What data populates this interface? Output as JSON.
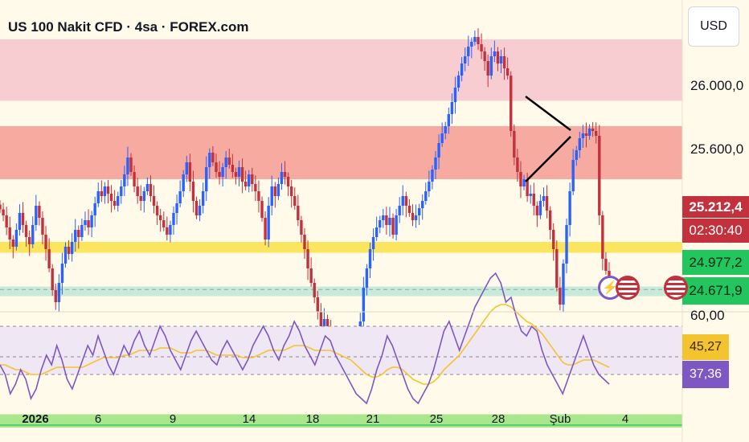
{
  "header": {
    "title": "US 100 Nakit CFD · 4sa · FOREX.com",
    "currency_label": "USD"
  },
  "colors": {
    "bull": "#2962ff",
    "bear": "#c2313c",
    "rsi": "#7e57c2",
    "rsi_ma": "#f4c430",
    "accent_red": "#c2313c",
    "accent_green": "#22c55e",
    "accent_purple": "#7e57c2"
  },
  "price_axis": {
    "ticks": [
      "26.000,0",
      "25.600,0"
    ]
  },
  "price_badges": {
    "last_price": "25.212,4",
    "countdown": "02:30:40",
    "level_upper": "24.977,2",
    "level_lower": "24.671,9"
  },
  "rsi_axis": {
    "top_label": "60,00",
    "ma_value": "45,27",
    "rsi_value": "37,36"
  },
  "x_axis": {
    "labels": [
      "2026",
      "6",
      "9",
      "14",
      "18",
      "21",
      "25",
      "28",
      "Şub",
      "4"
    ]
  },
  "events": [
    {
      "icon": "lightning-icon"
    },
    {
      "icon": "us-flag-icon"
    },
    {
      "icon": "us-flag-icon"
    }
  ],
  "chart_data": {
    "type": "candlestick",
    "y_range": [
      24580,
      26330
    ],
    "zones": [
      {
        "from": 25995,
        "to": 26250,
        "color": "#f8cdd2"
      },
      {
        "from": 25670,
        "to": 25890,
        "color": "#f6aaa0"
      },
      {
        "from": 25365,
        "to": 25410,
        "color": "#fbe45e"
      },
      {
        "from": 25185,
        "to": 25225,
        "color": "#c8eadb"
      },
      {
        "from": 24640,
        "to": 24695,
        "color": "#a9e68c"
      }
    ],
    "dashed_levels": [
      24977.2,
      25212.4
    ],
    "close": [
      25545,
      25520,
      25470,
      25420,
      25390,
      25460,
      25530,
      25480,
      25430,
      25400,
      25480,
      25560,
      25510,
      25440,
      25380,
      25300,
      25210,
      25160,
      25240,
      25320,
      25390,
      25360,
      25410,
      25460,
      25430,
      25480,
      25500,
      25470,
      25520,
      25570,
      25620,
      25600,
      25640,
      25610,
      25580,
      25560,
      25600,
      25640,
      25690,
      25760,
      25700,
      25640,
      25600,
      25580,
      25620,
      25650,
      25600,
      25560,
      25520,
      25500,
      25470,
      25440,
      25480,
      25530,
      25570,
      25620,
      25690,
      25740,
      25660,
      25580,
      25520,
      25560,
      25620,
      25720,
      25780,
      25740,
      25700,
      25680,
      25720,
      25760,
      25730,
      25700,
      25680,
      25720,
      25660,
      25640,
      25690,
      25650,
      25620,
      25580,
      25510,
      25420,
      25560,
      25640,
      25600,
      25650,
      25700,
      25680,
      25640,
      25600,
      25560,
      25500,
      25440,
      25380,
      25300,
      25240,
      25180,
      25120,
      25060,
      25090,
      25060,
      25020,
      24980,
      24960,
      24990,
      25020,
      24960,
      24950,
      24930,
      25010,
      25080,
      25220,
      25300,
      25380,
      25430,
      25470,
      25500,
      25520,
      25480,
      25510,
      25440,
      25520,
      25560,
      25600,
      25560,
      25530,
      25500,
      25520,
      25550,
      25580,
      25620,
      25660,
      25710,
      25760,
      25820,
      25860,
      25890,
      25940,
      25990,
      26050,
      26100,
      26150,
      26180,
      26220,
      26240,
      26260,
      26230,
      26200,
      26160,
      26100,
      26180,
      26200,
      26150,
      26180,
      26130,
      26100,
      25870,
      25760,
      25700,
      25640,
      25670,
      25600,
      25610,
      25560,
      25520,
      25580,
      25600,
      25540,
      25460,
      25380,
      25220,
      25150,
      25320,
      25480,
      25620,
      25750,
      25790,
      25840,
      25860,
      25850,
      25880,
      25870,
      25850,
      25520,
      25340,
      25290,
      25212
    ],
    "rsi": [
      44,
      40,
      32,
      36,
      42,
      38,
      30,
      34,
      42,
      48,
      44,
      52,
      46,
      38,
      34,
      40,
      46,
      52,
      48,
      56,
      50,
      44,
      40,
      46,
      52,
      48,
      54,
      58,
      52,
      48,
      54,
      60,
      56,
      50,
      46,
      42,
      48,
      54,
      58,
      54,
      50,
      46,
      44,
      50,
      54,
      50,
      46,
      42,
      46,
      52,
      56,
      60,
      56,
      50,
      46,
      52,
      56,
      62,
      58,
      52,
      48,
      44,
      50,
      56,
      54,
      48,
      44,
      40,
      36,
      32,
      30,
      28,
      34,
      42,
      48,
      56,
      52,
      46,
      40,
      34,
      30,
      28,
      32,
      36,
      42,
      50,
      58,
      62,
      56,
      50,
      56,
      62,
      68,
      72,
      76,
      80,
      82,
      78,
      70,
      72,
      64,
      58,
      56,
      60,
      58,
      50,
      44,
      40,
      36,
      32,
      38,
      44,
      50,
      56,
      50,
      44,
      40,
      38,
      36
    ],
    "rsi_ma": [
      44,
      44,
      43,
      42,
      42,
      41,
      40,
      40,
      40,
      41,
      42,
      43,
      43,
      43,
      43,
      43,
      43,
      44,
      45,
      46,
      47,
      47,
      47,
      47,
      48,
      48,
      49,
      50,
      50,
      50,
      50,
      51,
      51,
      51,
      50,
      49,
      49,
      49,
      50,
      50,
      50,
      49,
      48,
      48,
      48,
      48,
      48,
      47,
      47,
      47,
      48,
      49,
      50,
      50,
      50,
      50,
      51,
      52,
      52,
      52,
      51,
      50,
      50,
      50,
      50,
      49,
      48,
      47,
      46,
      44,
      42,
      40,
      39,
      39,
      40,
      42,
      43,
      43,
      42,
      40,
      38,
      37,
      36,
      36,
      37,
      39,
      42,
      44,
      46,
      48,
      51,
      54,
      57,
      60,
      63,
      66,
      68,
      69,
      69,
      68,
      66,
      64,
      62,
      61,
      59,
      57,
      54,
      51,
      48,
      45,
      44,
      44,
      45,
      46,
      46,
      46,
      45,
      44,
      43
    ]
  }
}
